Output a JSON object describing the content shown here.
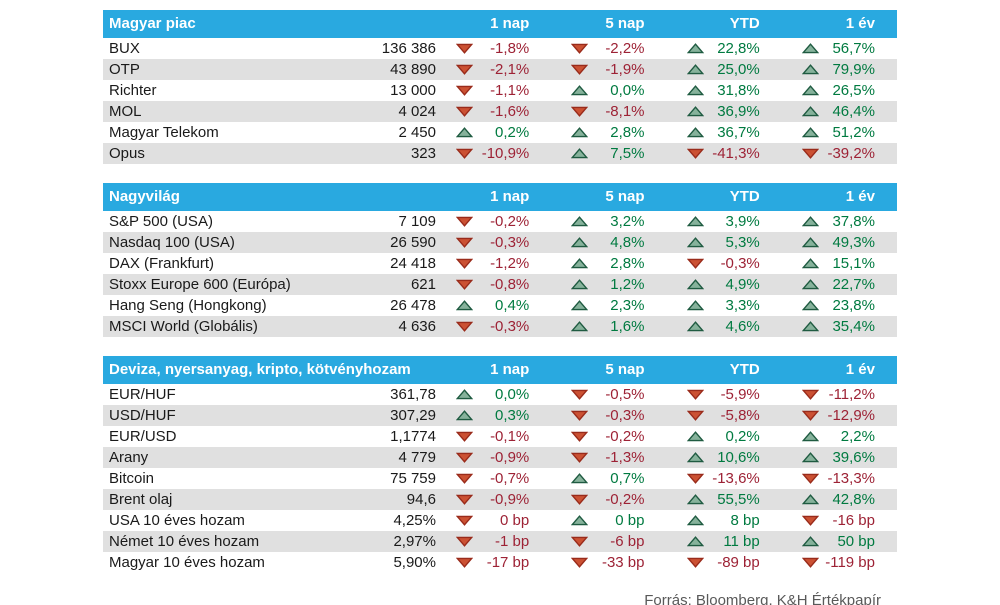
{
  "source_note": "Forrás: Bloomberg, K&H Értékpapír",
  "columns": [
    "1 nap",
    "5 nap",
    "YTD",
    "1 év"
  ],
  "colors": {
    "header_bg": "#29a9e0",
    "row_alt_bg": "#e0e0e0",
    "positive_text": "#007a40",
    "negative_text": "#9d2235",
    "up_arrow_fill": "#86b29b",
    "up_arrow_stroke": "#1f5b41",
    "down_arrow_fill": "#cb5133",
    "down_arrow_stroke": "#992b1b",
    "source_text": "#595959"
  },
  "sections": [
    {
      "title": "Magyar piac",
      "rows": [
        {
          "name": "BUX",
          "value": "136 386",
          "changes": [
            {
              "dir": "down",
              "text": "-1,8%"
            },
            {
              "dir": "down",
              "text": "-2,2%"
            },
            {
              "dir": "up",
              "text": "22,8%"
            },
            {
              "dir": "up",
              "text": "56,7%"
            }
          ]
        },
        {
          "name": "OTP",
          "value": "43 890",
          "changes": [
            {
              "dir": "down",
              "text": "-2,1%"
            },
            {
              "dir": "down",
              "text": "-1,9%"
            },
            {
              "dir": "up",
              "text": "25,0%"
            },
            {
              "dir": "up",
              "text": "79,9%"
            }
          ]
        },
        {
          "name": "Richter",
          "value": "13 000",
          "changes": [
            {
              "dir": "down",
              "text": "-1,1%"
            },
            {
              "dir": "up",
              "text": "0,0%"
            },
            {
              "dir": "up",
              "text": "31,8%"
            },
            {
              "dir": "up",
              "text": "26,5%"
            }
          ]
        },
        {
          "name": "MOL",
          "value": "4 024",
          "changes": [
            {
              "dir": "down",
              "text": "-1,6%"
            },
            {
              "dir": "down",
              "text": "-8,1%"
            },
            {
              "dir": "up",
              "text": "36,9%"
            },
            {
              "dir": "up",
              "text": "46,4%"
            }
          ]
        },
        {
          "name": "Magyar Telekom",
          "value": "2 450",
          "changes": [
            {
              "dir": "up",
              "text": "0,2%"
            },
            {
              "dir": "up",
              "text": "2,8%"
            },
            {
              "dir": "up",
              "text": "36,7%"
            },
            {
              "dir": "up",
              "text": "51,2%"
            }
          ]
        },
        {
          "name": "Opus",
          "value": "323",
          "changes": [
            {
              "dir": "down",
              "text": "-10,9%"
            },
            {
              "dir": "up",
              "text": "7,5%"
            },
            {
              "dir": "down",
              "text": "-41,3%"
            },
            {
              "dir": "down",
              "text": "-39,2%"
            }
          ]
        }
      ]
    },
    {
      "title": "Nagyvilág",
      "rows": [
        {
          "name": "S&P 500 (USA)",
          "value": "7 109",
          "changes": [
            {
              "dir": "down",
              "text": "-0,2%"
            },
            {
              "dir": "up",
              "text": "3,2%"
            },
            {
              "dir": "up",
              "text": "3,9%"
            },
            {
              "dir": "up",
              "text": "37,8%"
            }
          ]
        },
        {
          "name": "Nasdaq 100 (USA)",
          "value": "26 590",
          "changes": [
            {
              "dir": "down",
              "text": "-0,3%"
            },
            {
              "dir": "up",
              "text": "4,8%"
            },
            {
              "dir": "up",
              "text": "5,3%"
            },
            {
              "dir": "up",
              "text": "49,3%"
            }
          ]
        },
        {
          "name": "DAX (Frankfurt)",
          "value": "24 418",
          "changes": [
            {
              "dir": "down",
              "text": "-1,2%"
            },
            {
              "dir": "up",
              "text": "2,8%"
            },
            {
              "dir": "down",
              "text": "-0,3%"
            },
            {
              "dir": "up",
              "text": "15,1%"
            }
          ]
        },
        {
          "name": "Stoxx Europe 600 (Európa)",
          "value": "621",
          "changes": [
            {
              "dir": "down",
              "text": "-0,8%"
            },
            {
              "dir": "up",
              "text": "1,2%"
            },
            {
              "dir": "up",
              "text": "4,9%"
            },
            {
              "dir": "up",
              "text": "22,7%"
            }
          ]
        },
        {
          "name": "Hang Seng (Hongkong)",
          "value": "26 478",
          "changes": [
            {
              "dir": "up",
              "text": "0,4%"
            },
            {
              "dir": "up",
              "text": "2,3%"
            },
            {
              "dir": "up",
              "text": "3,3%"
            },
            {
              "dir": "up",
              "text": "23,8%"
            }
          ]
        },
        {
          "name": "MSCI World (Globális)",
          "value": "4 636",
          "changes": [
            {
              "dir": "down",
              "text": "-0,3%"
            },
            {
              "dir": "up",
              "text": "1,6%"
            },
            {
              "dir": "up",
              "text": "4,6%"
            },
            {
              "dir": "up",
              "text": "35,4%"
            }
          ]
        }
      ]
    },
    {
      "title": "Deviza, nyersanyag, kripto, kötvényhozam",
      "rows": [
        {
          "name": "EUR/HUF",
          "value": "361,78",
          "changes": [
            {
              "dir": "up",
              "text": "0,0%"
            },
            {
              "dir": "down",
              "text": "-0,5%"
            },
            {
              "dir": "down",
              "text": "-5,9%"
            },
            {
              "dir": "down",
              "text": "-11,2%"
            }
          ]
        },
        {
          "name": "USD/HUF",
          "value": "307,29",
          "changes": [
            {
              "dir": "up",
              "text": "0,3%"
            },
            {
              "dir": "down",
              "text": "-0,3%"
            },
            {
              "dir": "down",
              "text": "-5,8%"
            },
            {
              "dir": "down",
              "text": "-12,9%"
            }
          ]
        },
        {
          "name": "EUR/USD",
          "value": "1,1774",
          "changes": [
            {
              "dir": "down",
              "text": "-0,1%"
            },
            {
              "dir": "down",
              "text": "-0,2%"
            },
            {
              "dir": "up",
              "text": "0,2%"
            },
            {
              "dir": "up",
              "text": "2,2%"
            }
          ]
        },
        {
          "name": "Arany",
          "value": "4 779",
          "changes": [
            {
              "dir": "down",
              "text": "-0,9%"
            },
            {
              "dir": "down",
              "text": "-1,3%"
            },
            {
              "dir": "up",
              "text": "10,6%"
            },
            {
              "dir": "up",
              "text": "39,6%"
            }
          ]
        },
        {
          "name": "Bitcoin",
          "value": "75 759",
          "changes": [
            {
              "dir": "down",
              "text": "-0,7%"
            },
            {
              "dir": "up",
              "text": "0,7%"
            },
            {
              "dir": "down",
              "text": "-13,6%"
            },
            {
              "dir": "down",
              "text": "-13,3%"
            }
          ]
        },
        {
          "name": "Brent olaj",
          "value": "94,6",
          "changes": [
            {
              "dir": "down",
              "text": "-0,9%"
            },
            {
              "dir": "down",
              "text": "-0,2%"
            },
            {
              "dir": "up",
              "text": "55,5%"
            },
            {
              "dir": "up",
              "text": "42,8%"
            }
          ]
        },
        {
          "name": "USA 10 éves hozam",
          "value": "4,25%",
          "changes": [
            {
              "dir": "down",
              "text": "0 bp"
            },
            {
              "dir": "up",
              "text": "0 bp"
            },
            {
              "dir": "up",
              "text": "8 bp"
            },
            {
              "dir": "down",
              "text": "-16 bp"
            }
          ]
        },
        {
          "name": "Német 10 éves hozam",
          "value": "2,97%",
          "changes": [
            {
              "dir": "down",
              "text": "-1 bp"
            },
            {
              "dir": "down",
              "text": "-6 bp"
            },
            {
              "dir": "up",
              "text": "11 bp"
            },
            {
              "dir": "up",
              "text": "50 bp"
            }
          ]
        },
        {
          "name": "Magyar 10 éves hozam",
          "value": "5,90%",
          "changes": [
            {
              "dir": "down",
              "text": "-17 bp"
            },
            {
              "dir": "down",
              "text": "-33 bp"
            },
            {
              "dir": "down",
              "text": "-89 bp"
            },
            {
              "dir": "down",
              "text": "-119 bp"
            }
          ]
        }
      ]
    }
  ]
}
